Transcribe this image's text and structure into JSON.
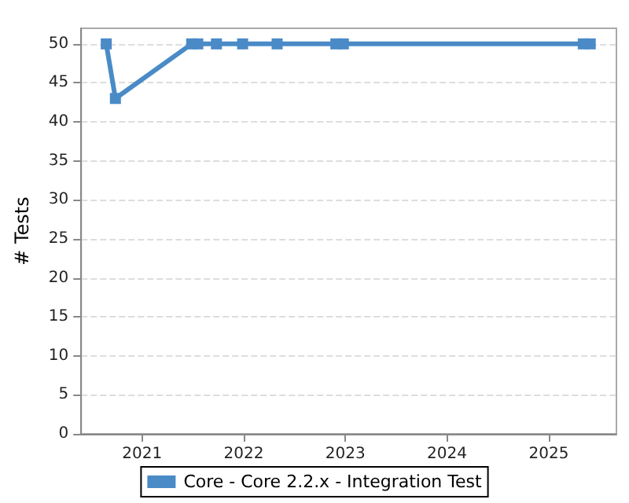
{
  "chart_data": {
    "type": "line",
    "ylabel": "# Tests",
    "x": [
      "2020-08-25",
      "2020-09-27",
      "2021-06-28",
      "2021-07-20",
      "2021-09-25",
      "2021-12-28",
      "2022-05-01",
      "2022-11-28",
      "2022-12-25",
      "2025-05-05",
      "2025-05-30"
    ],
    "series": [
      {
        "name": "Core - Core 2.2.x - Integration Test",
        "color": "#4a8bc7",
        "values": [
          50,
          43,
          50,
          50,
          50,
          50,
          50,
          50,
          50,
          50,
          50
        ]
      }
    ],
    "xlim": [
      "2020-05-27",
      "2025-09-01"
    ],
    "xticks": [
      "2021",
      "2022",
      "2023",
      "2024",
      "2025"
    ],
    "ylim": [
      0,
      52
    ],
    "yticks": [
      0,
      5,
      10,
      15,
      20,
      25,
      30,
      35,
      40,
      45,
      50
    ],
    "grid": "y",
    "legend": "bottom",
    "marker": "square",
    "line_style": "solid"
  }
}
